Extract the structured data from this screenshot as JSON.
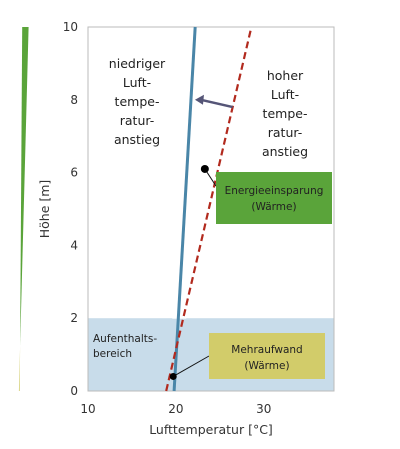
{
  "chart_data": {
    "type": "line",
    "xlabel": "Lufttemperatur [°C]",
    "ylabel": "Höhe [m]",
    "xlim": [
      10,
      38
    ],
    "ylim": [
      0,
      10
    ],
    "xticks": [
      "10",
      "20",
      "30"
    ],
    "yticks": [
      "0",
      "2",
      "4",
      "6",
      "8",
      "10"
    ],
    "grid": false,
    "series": [
      {
        "x": [
          19.8,
          22.2
        ],
        "y": [
          0,
          10
        ],
        "style": "solid",
        "color": "#4a86a8"
      },
      {
        "x": [
          18.9,
          28.6
        ],
        "y": [
          0,
          10
        ],
        "style": "dashed",
        "color": "#b22a1e"
      }
    ],
    "regions": {
      "energy_saving_fill": "#5aa43a",
      "occupied_zone": {
        "y": [
          0,
          2
        ],
        "color": "#c8dcea"
      }
    },
    "annotations": {
      "left_region": [
        "niedriger",
        "Luft-",
        "tempe-",
        "ratur-",
        "anstieg"
      ],
      "right_region": [
        "hoher",
        "Luft-",
        "tempe-",
        "ratur-",
        "anstieg"
      ],
      "occupied_label": [
        "Aufenthalts-",
        "bereich"
      ],
      "energy_box": {
        "lines": [
          "Energieeinsparung",
          "(Wärme)"
        ],
        "color": "#5aa43a"
      },
      "extra_box": {
        "lines": [
          "Mehraufwand",
          "(Wärme)"
        ],
        "color": "#d2cc6a"
      }
    }
  }
}
